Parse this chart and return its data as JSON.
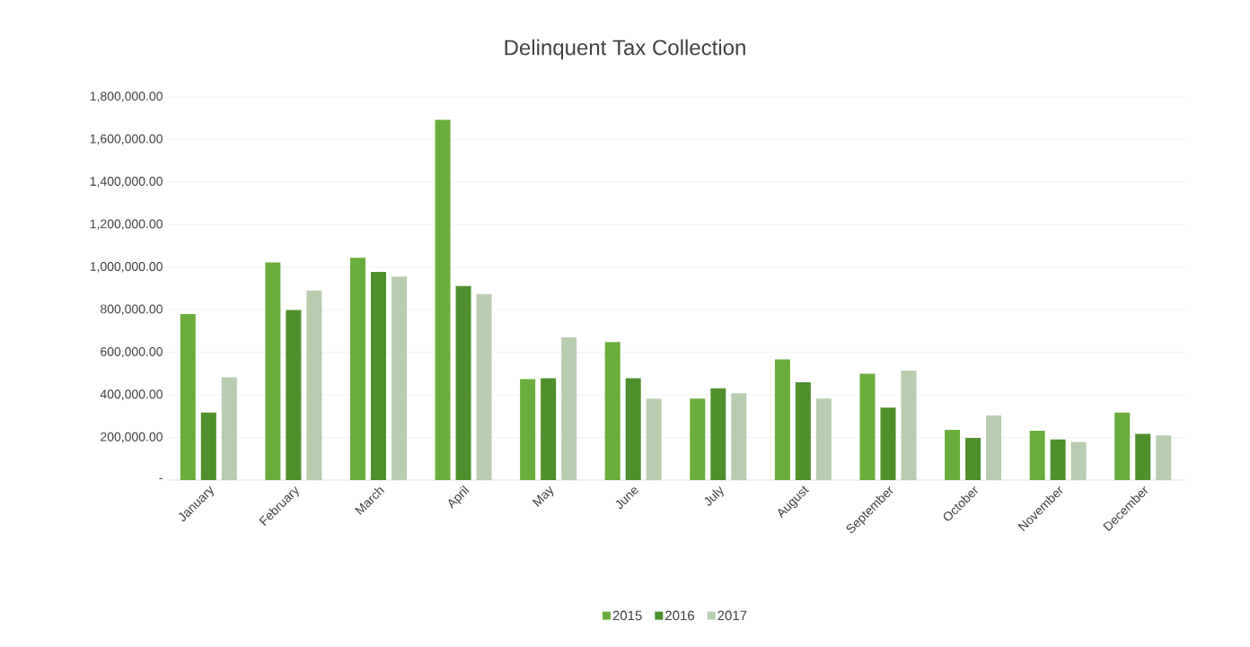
{
  "chart_data": {
    "type": "bar",
    "title": "Delinquent Tax Collection",
    "categories": [
      "January",
      "February",
      "March",
      "April",
      "May",
      "June",
      "July",
      "August",
      "September",
      "October",
      "November",
      "December"
    ],
    "series": [
      {
        "name": "2015",
        "color": "#6aad3d",
        "values": [
          780000,
          1022000,
          1044000,
          1692000,
          474000,
          648000,
          383000,
          567000,
          500000,
          236000,
          232000,
          317000
        ]
      },
      {
        "name": "2016",
        "color": "#4f8f2c",
        "values": [
          317000,
          799000,
          978000,
          912000,
          478000,
          478000,
          431000,
          459000,
          340000,
          198000,
          191000,
          217000
        ]
      },
      {
        "name": "2017",
        "color": "#b8ccb0",
        "values": [
          483000,
          890000,
          956000,
          874000,
          670000,
          383000,
          408000,
          383000,
          514000,
          304000,
          179000,
          210000
        ]
      }
    ],
    "ylim": [
      0,
      1800000
    ],
    "yticks": [
      {
        "value": 0,
        "label": "-"
      },
      {
        "value": 200000,
        "label": "200,000.00"
      },
      {
        "value": 400000,
        "label": "400,000.00"
      },
      {
        "value": 600000,
        "label": "600,000.00"
      },
      {
        "value": 800000,
        "label": "800,000.00"
      },
      {
        "value": 1000000,
        "label": "1,000,000.00"
      },
      {
        "value": 1200000,
        "label": "1,200,000.00"
      },
      {
        "value": 1400000,
        "label": "1,400,000.00"
      },
      {
        "value": 1600000,
        "label": "1,600,000.00"
      },
      {
        "value": 1800000,
        "label": "1,800,000.00"
      }
    ],
    "grid": "y",
    "legend": "bottom"
  }
}
